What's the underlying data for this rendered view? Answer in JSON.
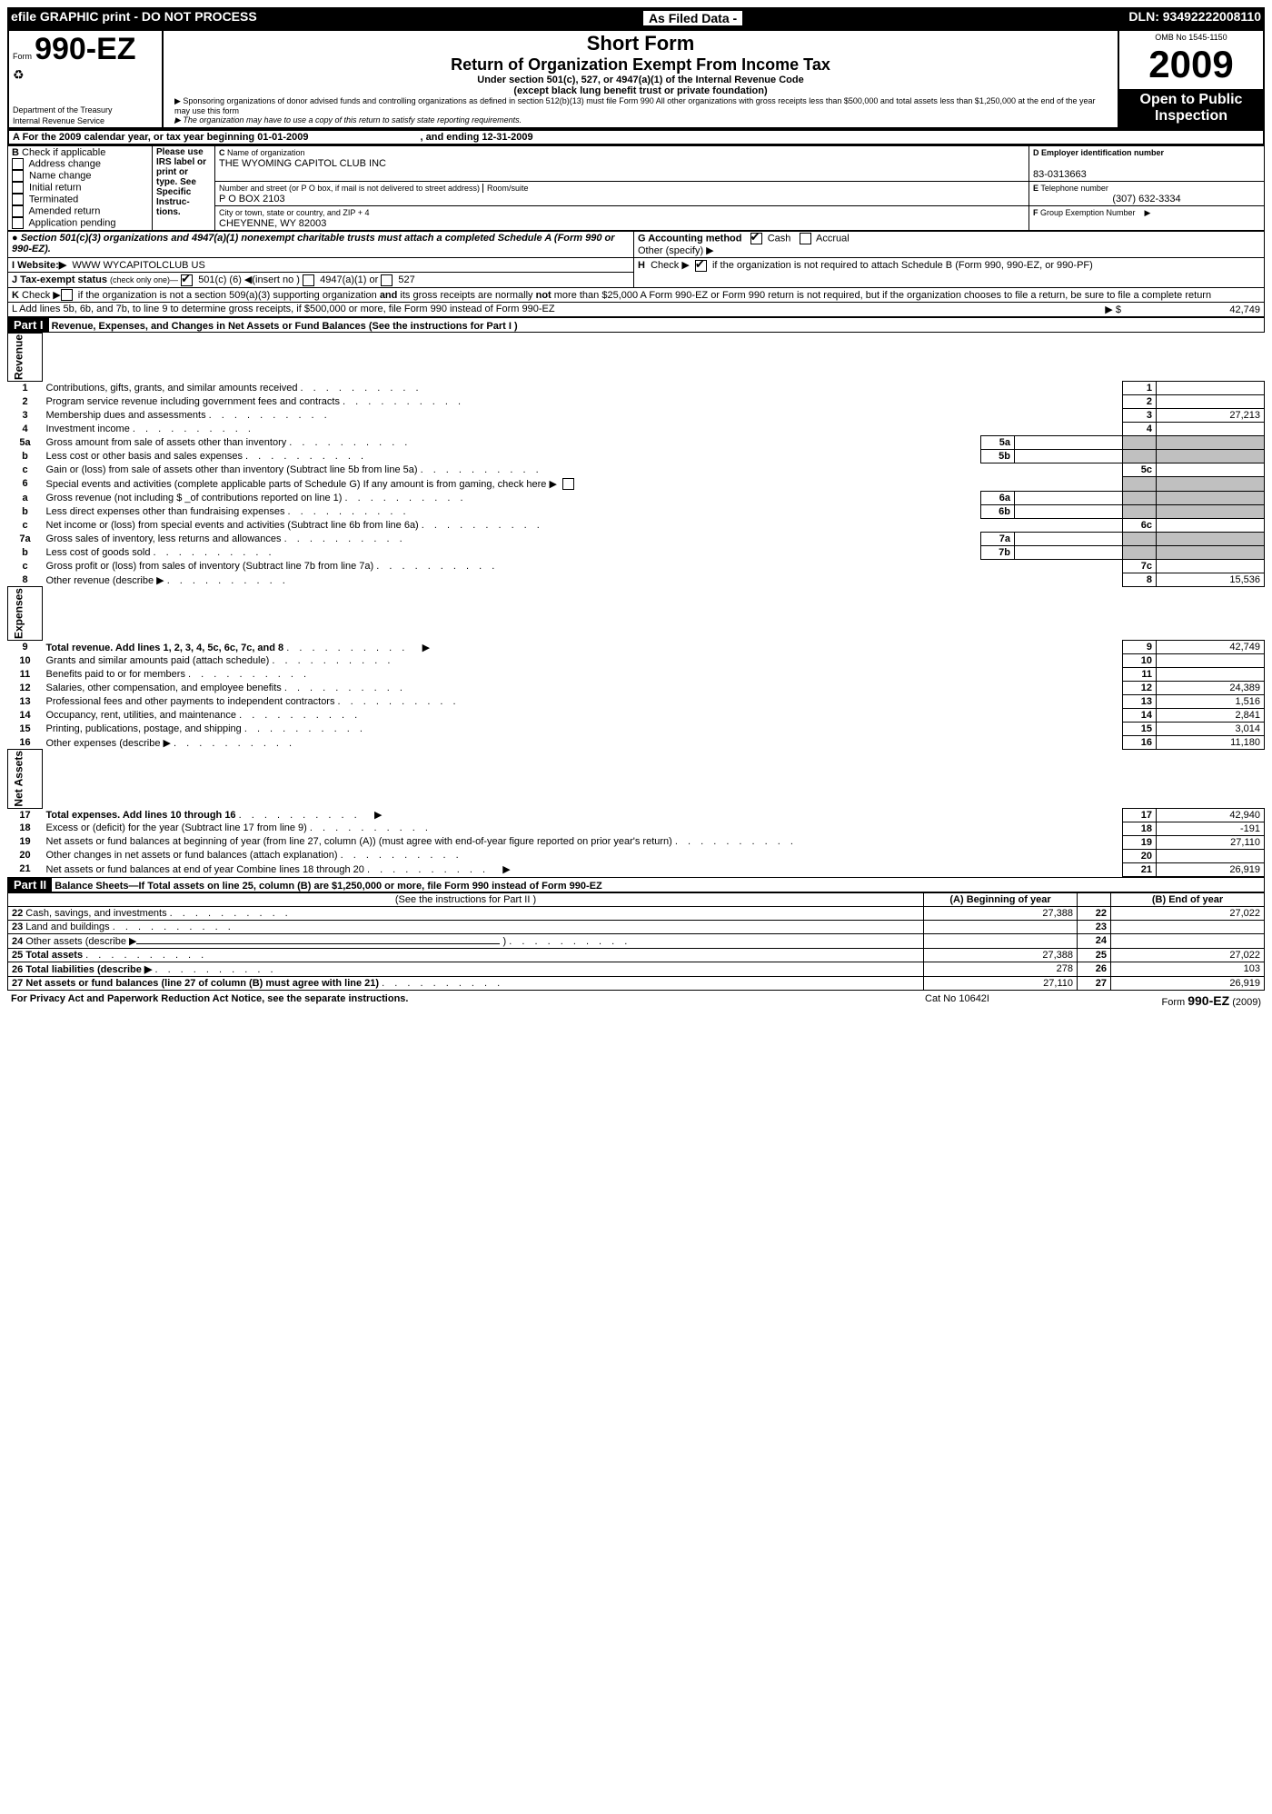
{
  "topBar": {
    "left": "efile GRAPHIC print - DO NOT PROCESS",
    "mid": "As Filed Data -",
    "right": "DLN: 93492222008110"
  },
  "header": {
    "formLabel": "Form",
    "formNum": "990-EZ",
    "dept": "Department of the Treasury",
    "irs": "Internal Revenue Service",
    "shortForm": "Short Form",
    "title": "Return of Organization Exempt From Income Tax",
    "subtitle1": "Under section 501(c), 527, or 4947(a)(1) of the Internal Revenue Code",
    "subtitle2": "(except black lung benefit trust or private foundation)",
    "note1": "▶ Sponsoring organizations of donor advised funds and controlling organizations as defined in section 512(b)(13) must file Form 990  All other organizations with gross receipts less than $500,000 and total assets less than $1,250,000 at the end of the year may use this form",
    "note2": "▶ The organization may have to use a copy of this return to satisfy state reporting requirements.",
    "omb": "OMB No 1545-1150",
    "year": "2009",
    "openPublic": "Open to Public Inspection"
  },
  "periodLine": {
    "label": "A  For the 2009 calendar year, or tax year beginning 01-01-2009",
    "ending": ", and ending 12-31-2009"
  },
  "sectionB": {
    "label": "B",
    "checkIf": "Check if applicable",
    "items": [
      "Address change",
      "Name change",
      "Initial return",
      "Terminated",
      "Amended return",
      "Application pending"
    ],
    "useLabel": "Please use IRS label or print or type. See Specific Instruc-tions."
  },
  "sectionC": {
    "nameLabel": "C Name of organization",
    "name": "THE WYOMING CAPITOL CLUB INC",
    "streetLabel": "Number and street (or P O box, if mail is not delivered to street address)",
    "roomLabel": "Room/suite",
    "street": "P O BOX 2103",
    "cityLabel": "City or town, state or country, and ZIP + 4",
    "city": "CHEYENNE, WY  82003"
  },
  "sectionD": {
    "label": "D Employer identification number",
    "val": "83-0313663"
  },
  "sectionE": {
    "label": "E Telephone number",
    "val": "(307) 632-3334"
  },
  "sectionF": {
    "label": "F Group Exemption Number  ▶"
  },
  "sectionG": {
    "label": "G Accounting method",
    "cash": "Cash",
    "accrual": "Accrual",
    "other": "Other (specify) ▶"
  },
  "section501": "● Section 501(c)(3) organizations and 4947(a)(1) nonexempt charitable trusts must attach a completed Schedule A (Form 990 or 990-EZ).",
  "sectionH": {
    "label": "H",
    "text": "Check ▶",
    "text2": "if the organization is not required to attach Schedule B (Form 990, 990-EZ, or 990-PF)"
  },
  "sectionI": {
    "label": "I Website:▶",
    "val": "WWW WYCAPITOLCLUB US"
  },
  "sectionJ": {
    "label": "J Tax-exempt status",
    "detail": "(check only one)—",
    "opt1": "501(c) (6) ◀(insert no )",
    "opt2": "4947(a)(1) or",
    "opt3": "527"
  },
  "sectionK": "K Check ▶     if the organization is not a section 509(a)(3) supporting organization and its gross receipts are normally not more than $25,000  A Form 990-EZ or Form 990 return is not required, but if the organization chooses to file a return, be sure to file a complete return",
  "sectionL": {
    "text": "L Add lines 5b, 6b, and 7b, to line 9 to determine gross receipts, if $500,000 or more, file Form 990 instead of Form 990-EZ",
    "arrow": "▶ $",
    "val": "42,749"
  },
  "part1": {
    "label": "Part I",
    "title": "Revenue, Expenses, and Changes in Net Assets or Fund Balances (See the instructions for Part I )",
    "revenueLabel": "Revenue",
    "expensesLabel": "Expenses",
    "netAssetsLabel": "Net Assets",
    "lines": [
      {
        "n": "1",
        "t": "Contributions, gifts, grants, and similar amounts received",
        "v": ""
      },
      {
        "n": "2",
        "t": "Program service revenue including government fees and contracts",
        "v": ""
      },
      {
        "n": "3",
        "t": "Membership dues and assessments",
        "v": "27,213"
      },
      {
        "n": "4",
        "t": "Investment income",
        "v": ""
      },
      {
        "n": "5a",
        "t": "Gross amount from sale of assets other than inventory",
        "mid": "5a",
        "midv": ""
      },
      {
        "n": "b",
        "t": "Less  cost or other basis and sales expenses",
        "mid": "5b",
        "midv": ""
      },
      {
        "n": "c",
        "t": "Gain or (loss) from sale of assets other than inventory (Subtract line 5b from line 5a)",
        "rn": "5c",
        "v": ""
      },
      {
        "n": "6",
        "t": "Special events and activities (complete applicable parts of Schedule G)  If any amount is from gaming, check here ▶"
      },
      {
        "n": "a",
        "t": "Gross revenue (not including $ _of contributions reported on line 1)",
        "mid": "6a",
        "midv": ""
      },
      {
        "n": "b",
        "t": "Less  direct expenses other than fundraising expenses",
        "mid": "6b",
        "midv": ""
      },
      {
        "n": "c",
        "t": "Net income or (loss) from special events and activities (Subtract line 6b from line 6a)",
        "rn": "6c",
        "v": ""
      },
      {
        "n": "7a",
        "t": "Gross sales of inventory, less returns and allowances",
        "mid": "7a",
        "midv": ""
      },
      {
        "n": "b",
        "t": "Less  cost of goods sold",
        "mid": "7b",
        "midv": ""
      },
      {
        "n": "c",
        "t": "Gross profit or (loss) from sales of inventory (Subtract line 7b from line 7a)",
        "rn": "7c",
        "v": ""
      },
      {
        "n": "8",
        "t": "Other revenue (describe ▶",
        "rn": "8",
        "v": "15,536"
      },
      {
        "n": "9",
        "t": "Total revenue. Add lines 1, 2, 3, 4, 5c, 6c, 7c, and 8",
        "rn": "9",
        "v": "42,749",
        "arrow": true,
        "bold": true
      },
      {
        "n": "10",
        "t": "Grants and similar amounts paid (attach schedule)",
        "rn": "10",
        "v": ""
      },
      {
        "n": "11",
        "t": "Benefits paid to or for members",
        "rn": "11",
        "v": ""
      },
      {
        "n": "12",
        "t": "Salaries, other compensation, and employee benefits",
        "rn": "12",
        "v": "24,389"
      },
      {
        "n": "13",
        "t": "Professional fees and other payments to independent contractors",
        "rn": "13",
        "v": "1,516"
      },
      {
        "n": "14",
        "t": "Occupancy, rent, utilities, and maintenance",
        "rn": "14",
        "v": "2,841"
      },
      {
        "n": "15",
        "t": "Printing, publications, postage, and shipping",
        "rn": "15",
        "v": "3,014"
      },
      {
        "n": "16",
        "t": "Other expenses (describe ▶",
        "rn": "16",
        "v": "11,180"
      },
      {
        "n": "17",
        "t": "Total expenses. Add lines 10 through 16",
        "rn": "17",
        "v": "42,940",
        "arrow": true,
        "bold": true
      },
      {
        "n": "18",
        "t": "Excess or (deficit) for the year (Subtract line 17 from line 9)",
        "rn": "18",
        "v": "-191"
      },
      {
        "n": "19",
        "t": "Net assets or fund balances at beginning of year (from line 27, column (A)) (must agree with end-of-year figure reported on prior year's return)",
        "rn": "19",
        "v": "27,110"
      },
      {
        "n": "20",
        "t": "Other changes in net assets or fund balances (attach explanation)",
        "rn": "20",
        "v": ""
      },
      {
        "n": "21",
        "t": "Net assets or fund balances at end of year  Combine lines 18 through 20",
        "rn": "21",
        "v": "26,919",
        "arrow": true
      }
    ]
  },
  "part2": {
    "label": "Part II",
    "title": "Balance Sheets—If Total assets on line 25, column (B) are $1,250,000 or more, file Form 990 instead of Form 990-EZ",
    "instr": "(See the instructions for Part II )",
    "colA": "(A) Beginning of year",
    "colB": "(B) End of year",
    "lines": [
      {
        "n": "22",
        "t": "Cash, savings, and investments",
        "a": "27,388",
        "b": "27,022"
      },
      {
        "n": "23",
        "t": "Land and buildings",
        "a": "",
        "b": ""
      },
      {
        "n": "24",
        "t": "Other assets (describe ▶",
        "a": "",
        "b": "",
        "underline": true
      },
      {
        "n": "25",
        "t": "Total assets",
        "a": "27,388",
        "b": "27,022",
        "bold": true
      },
      {
        "n": "26",
        "t": "Total liabilities (describe ▶",
        "a": "278",
        "b": "103",
        "bold": true
      },
      {
        "n": "27",
        "t": "Net assets or fund balances (line 27 of column (B) must agree with line 21)",
        "a": "27,110",
        "b": "26,919",
        "bold": true
      }
    ]
  },
  "footer": {
    "left": "For Privacy Act and Paperwork Reduction Act Notice, see the separate instructions.",
    "mid": "Cat No 10642I",
    "right": "Form 990-EZ (2009)"
  }
}
